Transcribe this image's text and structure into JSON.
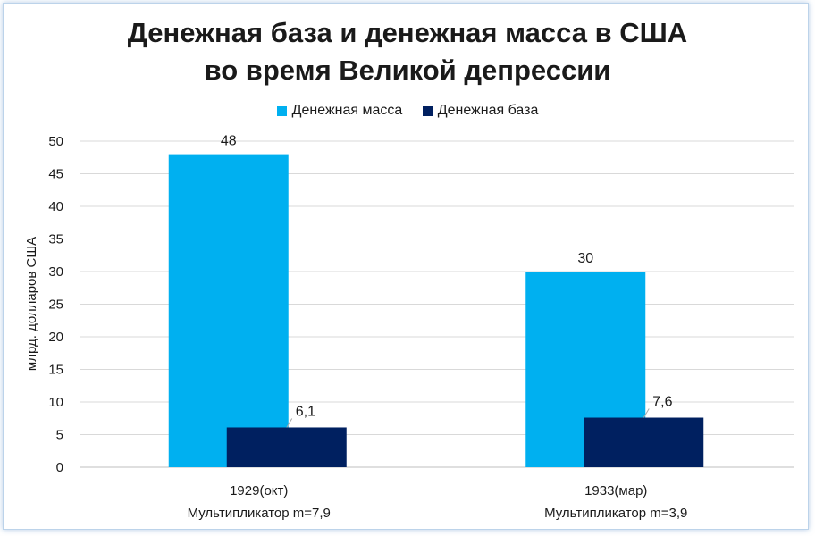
{
  "chart_data": {
    "type": "bar",
    "title_line1": "Денежная база и денежная масса в США",
    "title_line2": "во время Великой депрессии",
    "ylabel": "млрд. долларов США",
    "ylim": [
      0,
      50
    ],
    "yticks": [
      "0",
      "5",
      "10",
      "15",
      "20",
      "25",
      "30",
      "35",
      "40",
      "45",
      "50"
    ],
    "grid": true,
    "legend_position": "top",
    "categories": [
      "1929(окт)",
      "1933(мар)"
    ],
    "category_sublabels": [
      "Мультипликатор m=7,9",
      "Мультипликатор m=3,9"
    ],
    "series": [
      {
        "name": "Денежная масса",
        "values": [
          48,
          30
        ],
        "labels": [
          "48",
          "30"
        ],
        "color": "#00b0f0"
      },
      {
        "name": "Денежная база",
        "values": [
          6.1,
          7.6
        ],
        "labels": [
          "6,1",
          "7,6"
        ],
        "color": "#002060"
      }
    ]
  }
}
